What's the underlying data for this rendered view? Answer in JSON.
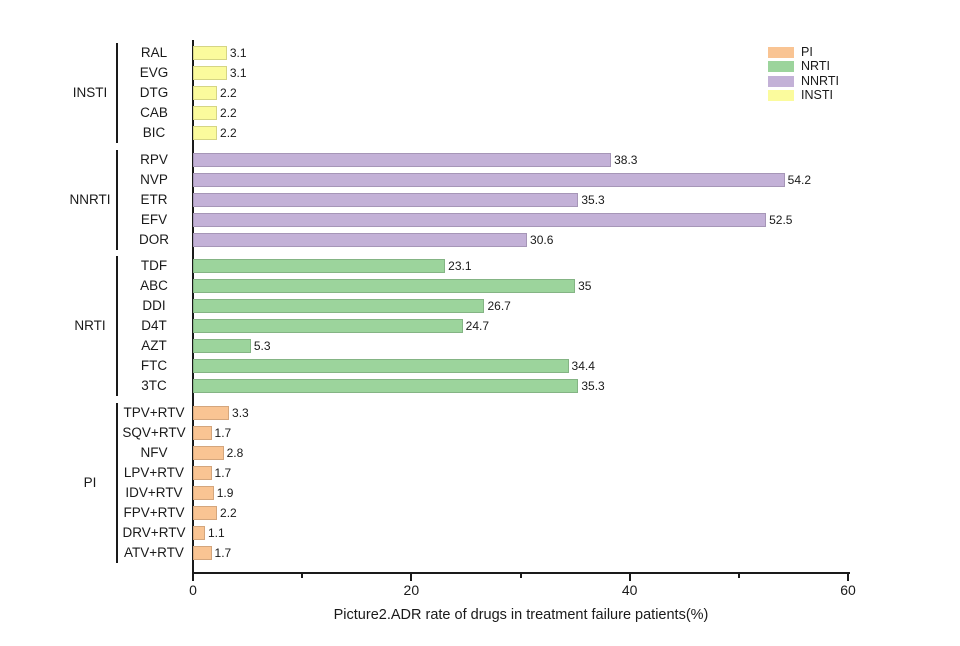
{
  "figure": {
    "background": "#ffffff",
    "caption": "Picture2.ADR rate of drugs in treatment failure patients(%)"
  },
  "legend": {
    "position": "top-right",
    "items": [
      {
        "label": "PI",
        "color": "#F9C493"
      },
      {
        "label": "NRTI",
        "color": "#9CD49C"
      },
      {
        "label": "NNRTI",
        "color": "#C3B1D7"
      },
      {
        "label": "INSTI",
        "color": "#FBFB9D"
      }
    ]
  },
  "chart_data": {
    "type": "bar",
    "orientation": "horizontal",
    "title": "Picture2.ADR rate of drugs in treatment failure patients(%)",
    "xlabel": "Picture2.ADR rate of drugs in treatment failure patients(%)",
    "ylabel": "",
    "xlim": [
      0,
      60
    ],
    "x_major_ticks": [
      "0",
      "20",
      "40",
      "60"
    ],
    "x_minor_ticks": [
      10,
      30,
      50
    ],
    "grid": false,
    "groups": [
      {
        "name": "INSTI",
        "color": "#FBFB9D",
        "bars": [
          {
            "label": "RAL",
            "value": 3.1,
            "value_label": "3.1"
          },
          {
            "label": "EVG",
            "value": 3.1,
            "value_label": "3.1"
          },
          {
            "label": "DTG",
            "value": 2.2,
            "value_label": "2.2"
          },
          {
            "label": "CAB",
            "value": 2.2,
            "value_label": "2.2"
          },
          {
            "label": "BIC",
            "value": 2.2,
            "value_label": "2.2"
          }
        ]
      },
      {
        "name": "NNRTI",
        "color": "#C3B1D7",
        "bars": [
          {
            "label": "RPV",
            "value": 38.3,
            "value_label": "38.3"
          },
          {
            "label": "NVP",
            "value": 54.2,
            "value_label": "54.2"
          },
          {
            "label": "ETR",
            "value": 35.3,
            "value_label": "35.3"
          },
          {
            "label": "EFV",
            "value": 52.5,
            "value_label": "52.5"
          },
          {
            "label": "DOR",
            "value": 30.6,
            "value_label": "30.6"
          }
        ]
      },
      {
        "name": "NRTI",
        "color": "#9CD49C",
        "bars": [
          {
            "label": "TDF",
            "value": 23.1,
            "value_label": "23.1"
          },
          {
            "label": "ABC",
            "value": 35,
            "value_label": "35"
          },
          {
            "label": "DDI",
            "value": 26.7,
            "value_label": "26.7"
          },
          {
            "label": "D4T",
            "value": 24.7,
            "value_label": "24.7"
          },
          {
            "label": "AZT",
            "value": 5.3,
            "value_label": "5.3"
          },
          {
            "label": "FTC",
            "value": 34.4,
            "value_label": "34.4"
          },
          {
            "label": "3TC",
            "value": 35.3,
            "value_label": "35.3"
          }
        ]
      },
      {
        "name": "PI",
        "color": "#F9C493",
        "bars": [
          {
            "label": "TPV+RTV",
            "value": 3.3,
            "value_label": "3.3"
          },
          {
            "label": "SQV+RTV",
            "value": 1.7,
            "value_label": "1.7"
          },
          {
            "label": "NFV",
            "value": 2.8,
            "value_label": "2.8"
          },
          {
            "label": "LPV+RTV",
            "value": 1.7,
            "value_label": "1.7"
          },
          {
            "label": "IDV+RTV",
            "value": 1.9,
            "value_label": "1.9"
          },
          {
            "label": "FPV+RTV",
            "value": 2.2,
            "value_label": "2.2"
          },
          {
            "label": "DRV+RTV",
            "value": 1.1,
            "value_label": "1.1"
          },
          {
            "label": "ATV+RTV",
            "value": 1.7,
            "value_label": "1.7"
          }
        ]
      }
    ]
  }
}
